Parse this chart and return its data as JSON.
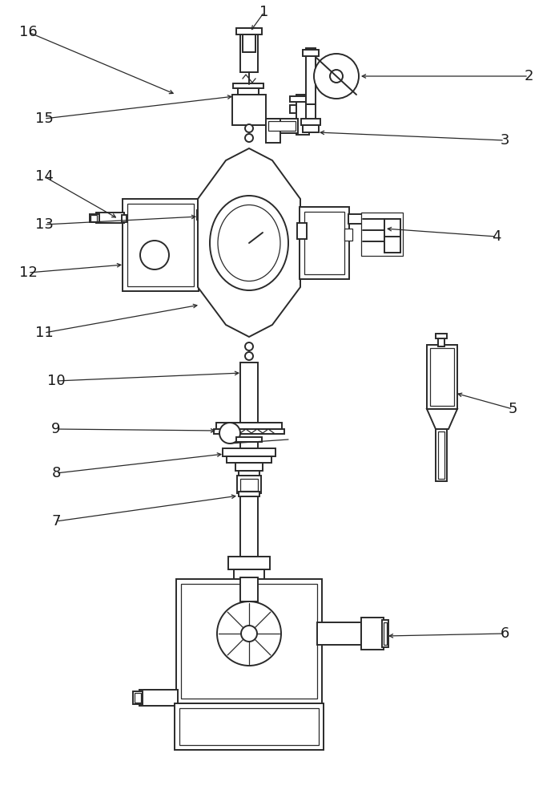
{
  "bg_color": "#ffffff",
  "lc": "#2a2a2a",
  "lw": 1.4,
  "tlw": 0.9
}
